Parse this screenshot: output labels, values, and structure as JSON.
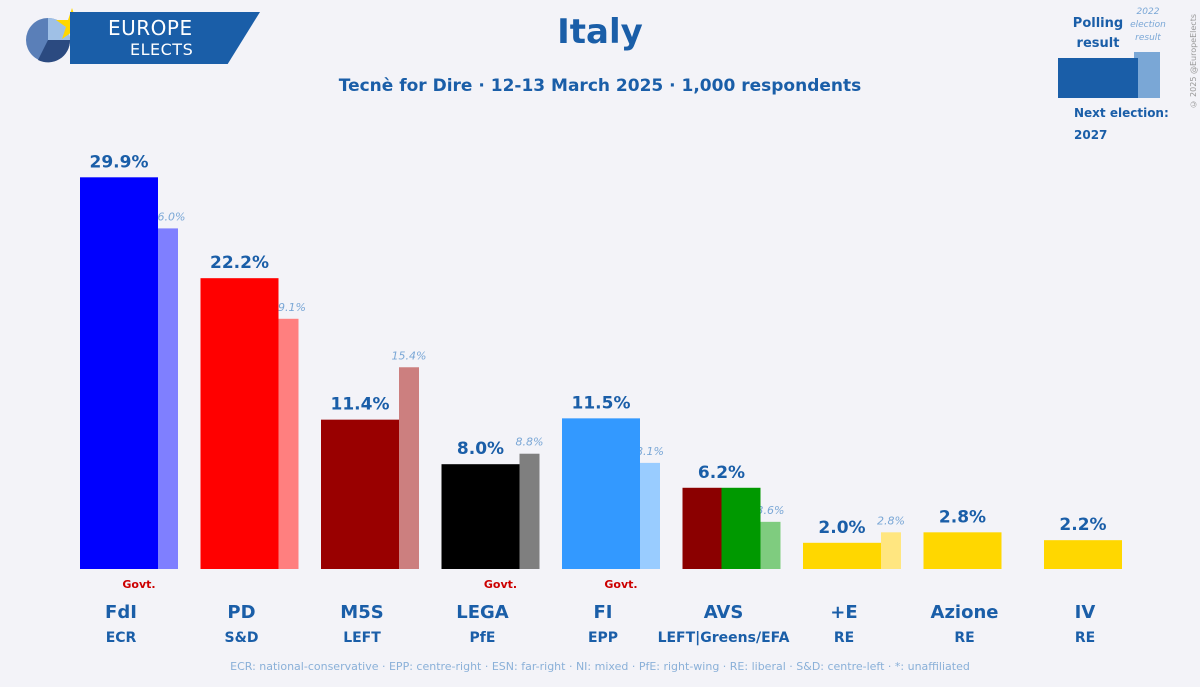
{
  "header": {
    "logo_line1": "EUROPE",
    "logo_line2": "ELECTS",
    "title": "Italy",
    "subtitle": "Tecnè for Dire · 12-13 March 2025 · 1,000 respondents"
  },
  "legend": {
    "polling": "Polling result",
    "previous": "2022 election result",
    "next_election_label": "Next election:",
    "next_election_year": "2027",
    "copyright": "© 2025 @EuropeElects"
  },
  "footnote": "ECR: national-conservative · EPP: centre-right · ESN: far-right · NI: mixed · PfE: right-wing · RE: liberal · S&D: centre-left · *: unaffiliated",
  "chart_data": {
    "type": "bar",
    "categories": [
      "FdI",
      "PD",
      "M5S",
      "LEGA",
      "FI",
      "AVS",
      "+E",
      "Azione",
      "IV"
    ],
    "groups": [
      "ECR",
      "S&D",
      "LEFT",
      "PfE",
      "EPP",
      "LEFT|Greens/EFA",
      "RE",
      "RE",
      "RE"
    ],
    "govt": [
      true,
      false,
      false,
      true,
      true,
      false,
      false,
      false,
      false
    ],
    "govt_label": "Govt.",
    "series": [
      {
        "name": "Polling result",
        "values": [
          29.9,
          22.2,
          11.4,
          8.0,
          11.5,
          6.2,
          2.0,
          2.8,
          2.2
        ],
        "labels": [
          "29.9%",
          "22.2%",
          "11.4%",
          "8.0%",
          "11.5%",
          "6.2%",
          "2.0%",
          "2.8%",
          "2.2%"
        ]
      },
      {
        "name": "2022 election result",
        "values": [
          26.0,
          19.1,
          15.4,
          8.8,
          8.1,
          3.6,
          2.8,
          null,
          null
        ],
        "labels": [
          "26.0%",
          "19.1%",
          "15.4%",
          "8.8%",
          "8.1%",
          "3.6%",
          "2.8%",
          "",
          ""
        ]
      }
    ],
    "colors": [
      [
        "#0000ff"
      ],
      [
        "#ff0000"
      ],
      [
        "#990000"
      ],
      [
        "#000000"
      ],
      [
        "#3399ff"
      ],
      [
        "#8b0000",
        "#009900"
      ],
      [
        "#ffd700"
      ],
      [
        "#ffd700"
      ],
      [
        "#ffd700"
      ]
    ],
    "prev_colors": [
      "#7f7fff",
      "#ff7f7f",
      "#cc7f7f",
      "#7f7f7f",
      "#99ccff",
      "#7fcc7f",
      "#ffe680",
      "",
      ""
    ],
    "ylim": [
      0,
      31
    ]
  }
}
